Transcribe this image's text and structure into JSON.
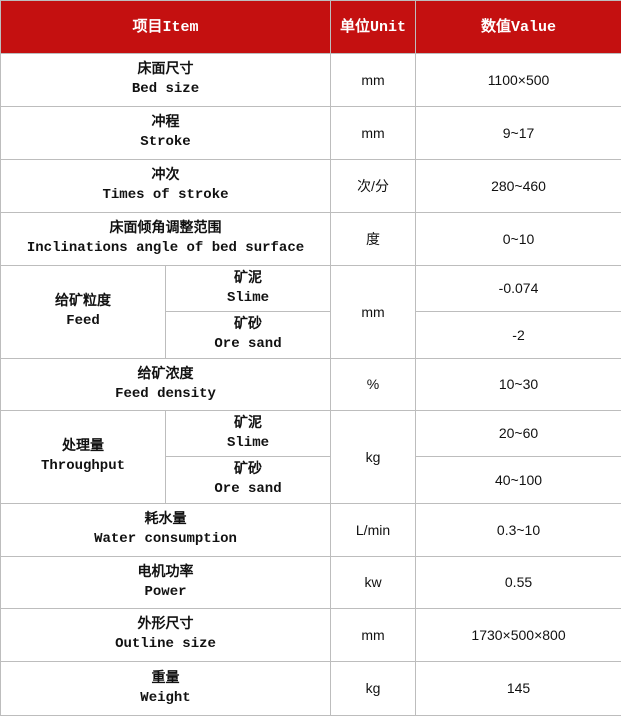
{
  "header": {
    "item": "项目Item",
    "unit": "单位Unit",
    "value": "数值Value"
  },
  "colors": {
    "header_bg": "#c41010",
    "header_text": "#ffffff",
    "border": "#bdbdbd"
  },
  "rows": {
    "bed_size": {
      "zh": "床面尺寸",
      "en": "Bed size",
      "unit": "mm",
      "value": "1100×500"
    },
    "stroke": {
      "zh": "冲程",
      "en": "Stroke",
      "unit": "mm",
      "value": "9~17"
    },
    "times": {
      "zh": "冲次",
      "en": "Times of stroke",
      "unit": "次/分",
      "value": "280~460"
    },
    "incl": {
      "zh": "床面倾角调整范围",
      "en": "Inclinations angle of bed surface",
      "unit": "度",
      "value": "0~10"
    },
    "feed": {
      "zh": "给矿粒度",
      "en": "Feed",
      "unit": "mm",
      "sub": [
        {
          "zh": "矿泥",
          "en": "Slime",
          "value": "-0.074"
        },
        {
          "zh": "矿砂",
          "en": "Ore sand",
          "value": "-2"
        }
      ]
    },
    "density": {
      "zh": "给矿浓度",
      "en": "Feed density",
      "unit": "%",
      "value": "10~30"
    },
    "throughput": {
      "zh": "处理量",
      "en": "Throughput",
      "unit": "kg",
      "sub": [
        {
          "zh": "矿泥",
          "en": "Slime",
          "value": "20~60"
        },
        {
          "zh": "矿砂",
          "en": "Ore sand",
          "value": "40~100"
        }
      ]
    },
    "water": {
      "zh": "耗水量",
      "en": "Water consumption",
      "unit": "L/min",
      "value": "0.3~10"
    },
    "power": {
      "zh": "电机功率",
      "en": "Power",
      "unit": "kw",
      "value": "0.55"
    },
    "outline": {
      "zh": "外形尺寸",
      "en": "Outline size",
      "unit": "mm",
      "value": "1730×500×800"
    },
    "weight": {
      "zh": "重量",
      "en": "Weight",
      "unit": "kg",
      "value": "145"
    }
  }
}
